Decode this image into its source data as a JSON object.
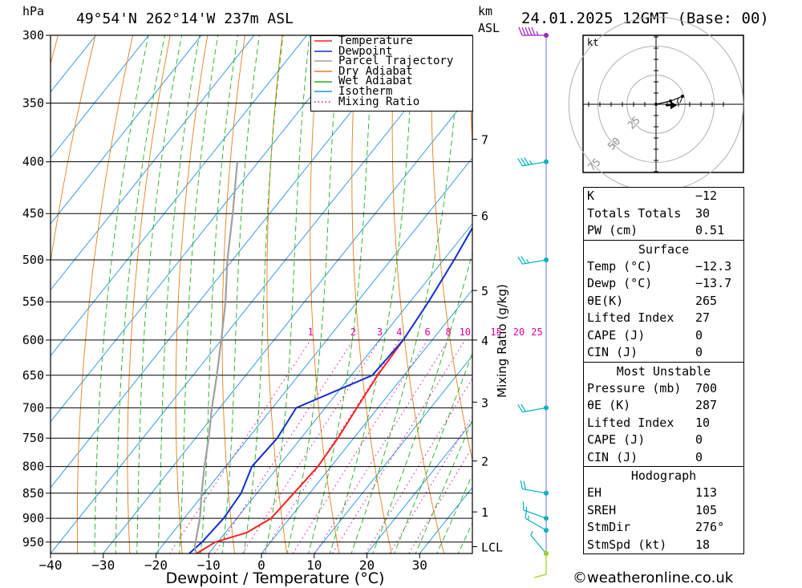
{
  "header": {
    "left_unit": "hPa",
    "location": "49°54'N  262°14'W  237m  ASL",
    "km_label": "km",
    "asl_label": "ASL",
    "datetime": "24.01.2025  12GMT  (Base: 00)"
  },
  "colors": {
    "temperature": "#ff2020",
    "dewpoint": "#1030d0",
    "parcel": "#a0a0a0",
    "dry_adiabat": "#e08020",
    "wet_adiabat": "#20b020",
    "isotherm": "#2090e0",
    "mixing_ratio": "#e000a0",
    "wind_barb": "#00b0c0"
  },
  "legend": [
    {
      "label": "Temperature",
      "key": "temperature",
      "style": "solid"
    },
    {
      "label": "Dewpoint",
      "key": "dewpoint",
      "style": "solid"
    },
    {
      "label": "Parcel Trajectory",
      "key": "parcel",
      "style": "solid"
    },
    {
      "label": "Dry Adiabat",
      "key": "dry_adiabat",
      "style": "solid"
    },
    {
      "label": "Wet Adiabat",
      "key": "wet_adiabat",
      "style": "solid"
    },
    {
      "label": "Isotherm",
      "key": "isotherm",
      "style": "solid"
    },
    {
      "label": "Mixing Ratio",
      "key": "mixing_ratio",
      "style": "dotted"
    }
  ],
  "chart_data": {
    "type": "line",
    "xlabel": "Dewpoint / Temperature (°C)",
    "ylabel": "hPa",
    "right_axis_label": "Mixing Ratio (g/kg)",
    "xlim": [
      -40,
      40
    ],
    "ylim": [
      975,
      300
    ],
    "x_ticks": [
      -40,
      -30,
      -20,
      -10,
      0,
      10,
      20,
      30
    ],
    "pressure_levels": [
      300,
      350,
      400,
      450,
      500,
      550,
      600,
      650,
      700,
      750,
      800,
      850,
      900,
      950
    ],
    "km_ticks": [
      {
        "label": "7",
        "p": 380
      },
      {
        "label": "6",
        "p": 452
      },
      {
        "label": "5",
        "p": 536
      },
      {
        "label": "4",
        "p": 600
      },
      {
        "label": "3",
        "p": 691
      },
      {
        "label": "2",
        "p": 790
      },
      {
        "label": "1",
        "p": 887
      },
      {
        "label": "LCL",
        "p": 960
      }
    ],
    "mixing_ratio_labels": [
      "1",
      "2",
      "3",
      "4",
      "6",
      "8",
      "10",
      "15",
      "20",
      "25"
    ],
    "mixing_ratio_values": [
      1,
      2,
      3,
      4,
      6,
      8,
      10,
      15,
      20,
      25
    ],
    "mixing_ratio_label_pressure": 600,
    "series": [
      {
        "name": "Temperature",
        "key": "temperature",
        "points": [
          [
            975,
            -12.3
          ],
          [
            950,
            -10.5
          ],
          [
            930,
            -6
          ],
          [
            900,
            -3.5
          ],
          [
            850,
            -3
          ],
          [
            800,
            -2.5
          ],
          [
            750,
            -3
          ],
          [
            700,
            -4
          ],
          [
            650,
            -5
          ],
          [
            600,
            -5.5
          ]
        ]
      },
      {
        "name": "Dewpoint",
        "key": "dewpoint",
        "points": [
          [
            975,
            -13.7
          ],
          [
            950,
            -13
          ],
          [
            900,
            -12.5
          ],
          [
            850,
            -13
          ],
          [
            800,
            -15
          ],
          [
            750,
            -14.5
          ],
          [
            700,
            -15.5
          ],
          [
            650,
            -6
          ],
          [
            600,
            -5.5
          ],
          [
            550,
            -6.5
          ],
          [
            500,
            -8
          ],
          [
            450,
            -10
          ],
          [
            400,
            -13.5
          ],
          [
            350,
            -18.5
          ],
          [
            300,
            -23.5
          ]
        ]
      },
      {
        "name": "Parcel Trajectory",
        "key": "parcel",
        "points": [
          [
            975,
            -12.3
          ],
          [
            960,
            -13.7
          ],
          [
            900,
            -17
          ],
          [
            850,
            -20.5
          ],
          [
            800,
            -24
          ],
          [
            750,
            -27.5
          ],
          [
            700,
            -31.5
          ],
          [
            650,
            -35.5
          ],
          [
            600,
            -40
          ],
          [
            550,
            -45
          ],
          [
            500,
            -51
          ],
          [
            450,
            -57
          ],
          [
            400,
            -64
          ]
        ]
      }
    ]
  },
  "wind_levels": [
    {
      "p": 300,
      "dir": 270,
      "speed": 55
    },
    {
      "p": 400,
      "dir": 260,
      "speed": 35
    },
    {
      "p": 500,
      "dir": 260,
      "speed": 25
    },
    {
      "p": 700,
      "dir": 260,
      "speed": 20
    },
    {
      "p": 850,
      "dir": 280,
      "speed": 20
    },
    {
      "p": 900,
      "dir": 290,
      "speed": 15
    },
    {
      "p": 925,
      "dir": 300,
      "speed": 15
    },
    {
      "p": 975,
      "dir": 320,
      "speed": 5
    }
  ],
  "hodograph": {
    "unit_label": "kt",
    "ring_labels": [
      "25",
      "50",
      "75"
    ],
    "points": [
      [
        0,
        0
      ],
      [
        18,
        -4
      ],
      [
        33,
        -10
      ]
    ],
    "storm_motion": [
      17,
      1.2
    ]
  },
  "indices": {
    "rows": [
      {
        "label": "K",
        "value": "-12"
      },
      {
        "label": "Totals Totals",
        "value": "30"
      },
      {
        "label": "PW (cm)",
        "value": "0.51"
      }
    ]
  },
  "surface": {
    "title": "Surface",
    "rows": [
      {
        "label": "Temp (°C)",
        "value": "-12.3"
      },
      {
        "label": "Dewp (°C)",
        "value": "-13.7"
      },
      {
        "label": "θE(K)",
        "value": "265"
      },
      {
        "label": "Lifted Index",
        "value": "27"
      },
      {
        "label": "CAPE (J)",
        "value": "0"
      },
      {
        "label": "CIN (J)",
        "value": "0"
      }
    ]
  },
  "most_unstable": {
    "title": "Most Unstable",
    "rows": [
      {
        "label": "Pressure (mb)",
        "value": "700"
      },
      {
        "label": "θE (K)",
        "value": "287"
      },
      {
        "label": "Lifted Index",
        "value": "10"
      },
      {
        "label": "CAPE (J)",
        "value": "0"
      },
      {
        "label": "CIN (J)",
        "value": "0"
      }
    ]
  },
  "hodograph_table": {
    "title": "Hodograph",
    "rows": [
      {
        "label": "EH",
        "value": "113"
      },
      {
        "label": "SREH",
        "value": "105"
      },
      {
        "label": "StmDir",
        "value": "276°"
      },
      {
        "label": "StmSpd (kt)",
        "value": "18"
      }
    ]
  },
  "footer": {
    "copyright_symbol": "©",
    "site": "weatheronline.co.uk"
  }
}
